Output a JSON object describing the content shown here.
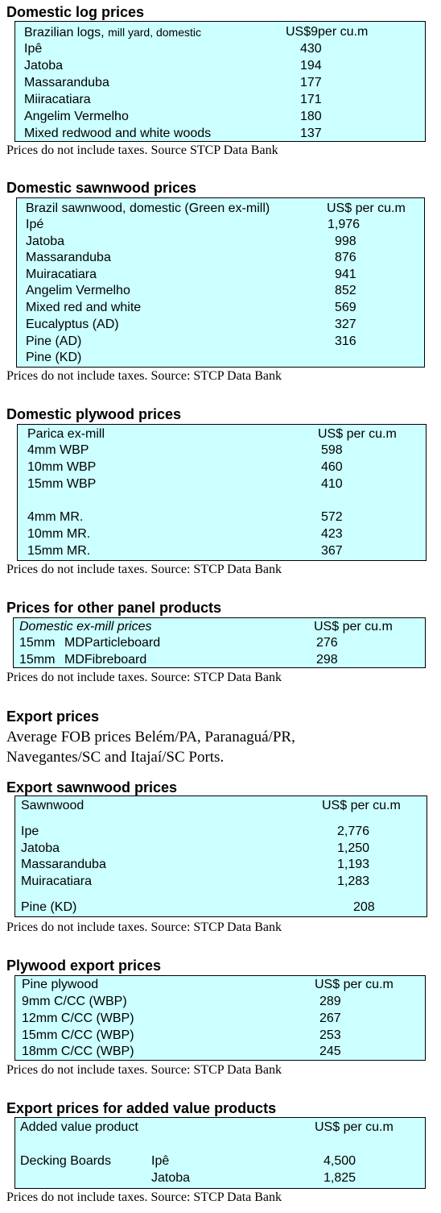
{
  "logs": {
    "title": "Domestic log prices",
    "header_label": "Brazilian logs,",
    "header_label_small": "mill yard, domestic",
    "header_unit": "US$9per cu.m",
    "rows": [
      {
        "name": "Ipê",
        "value": "430"
      },
      {
        "name": "Jatoba",
        "value": "194"
      },
      {
        "name": "Massaranduba",
        "value": "177"
      },
      {
        "name": "Miiracatiara",
        "value": "171"
      },
      {
        "name": "Angelim Vermelho",
        "value": "180"
      },
      {
        "name": "Mixed redwood and white woods",
        "value": "137"
      }
    ],
    "source": "Prices do not include taxes. Source STCP Data Bank"
  },
  "sawnwood": {
    "title": "Domestic sawnwood prices",
    "header_label": "Brazil sawnwood, domestic (Green ex-mill)",
    "header_unit": "US$ per cu.m",
    "rows": [
      {
        "name": "Ipé",
        "value": "1,976"
      },
      {
        "name": "Jatoba",
        "value": "998"
      },
      {
        "name": "Massaranduba",
        "value": "876"
      },
      {
        "name": "Muiracatiara",
        "value": "941"
      },
      {
        "name": "Angelim Vermelho",
        "value": "852"
      },
      {
        "name": "Mixed red and white",
        "value": "569"
      },
      {
        "name": "Eucalyptus (AD)",
        "value": "327"
      },
      {
        "name": "Pine (AD)",
        "value": "316"
      },
      {
        "name": "Pine (KD)",
        "value": ""
      }
    ],
    "source": "Prices do not include taxes. Source: STCP Data Bank"
  },
  "plywood": {
    "title": "Domestic plywood prices",
    "header_label": "Parica ex-mill",
    "header_unit": "US$ per cu.m",
    "rows": [
      {
        "name": "4mm WBP",
        "value": "598"
      },
      {
        "name": "10mm WBP",
        "value": "460"
      },
      {
        "name": "15mm WBP",
        "value": "410"
      },
      {
        "name": "4mm MR.",
        "value": "572"
      },
      {
        "name": "10mm MR.",
        "value": "423"
      },
      {
        "name": "15mm MR.",
        "value": "367"
      }
    ],
    "source": "Prices do not include taxes. Source: STCP Data Bank"
  },
  "panels": {
    "title": "Prices for other panel products",
    "header_label": "Domestic ex-mill prices",
    "header_unit": "US$ per cu.m",
    "rows": [
      {
        "size": "15mm",
        "name": "MDParticleboard",
        "value": "276"
      },
      {
        "size": "15mm",
        "name": "MDFibreboard",
        "value": "298"
      }
    ],
    "source": "Prices do not include taxes. Source: STCP Data Bank"
  },
  "export": {
    "title": "Export prices",
    "paragraph": "Average FOB prices Belém/PA, Paranaguá/PR, Navegantes/SC and Itajaí/SC Ports."
  },
  "export_sawnwood": {
    "title": "Export sawnwood prices",
    "header_label": "Sawnwood",
    "header_unit": "US$ per cu.m",
    "rows": [
      {
        "name": "Ipe",
        "value": "2,776"
      },
      {
        "name": "Jatoba",
        "value": "1,250"
      },
      {
        "name": "Massaranduba",
        "value": "1,193"
      },
      {
        "name": "Muiracatiara",
        "value": "1,283"
      },
      {
        "name": "Pine (KD)",
        "value": "208"
      }
    ],
    "source": "Prices do not include taxes. Source: STCP Data Bank"
  },
  "plywood_export": {
    "title": "Plywood export prices",
    "header_label": "Pine plywood",
    "header_unit": "US$ per cu.m",
    "rows": [
      {
        "name": "9mm C/CC (WBP)",
        "value": "289"
      },
      {
        "name": "12mm C/CC (WBP)",
        "value": "267"
      },
      {
        "name": "15mm C/CC (WBP)",
        "value": "253"
      },
      {
        "name": "18mm C/CC (WBP)",
        "value": "245"
      }
    ],
    "source": "Prices do not include taxes. Source: STCP Data Bank"
  },
  "added_value": {
    "title": "Export prices for added value products",
    "header_label": "Added value product",
    "header_unit": "US$ per cu.m",
    "product": "Decking Boards",
    "rows": [
      {
        "species": "Ipê",
        "value": "4,500"
      },
      {
        "species": "Jatoba",
        "value": "1,825"
      }
    ],
    "source": "Prices do not include taxes. Source: STCP Data Bank"
  },
  "colors": {
    "table_bg": "#ccffff",
    "border": "#000000"
  }
}
